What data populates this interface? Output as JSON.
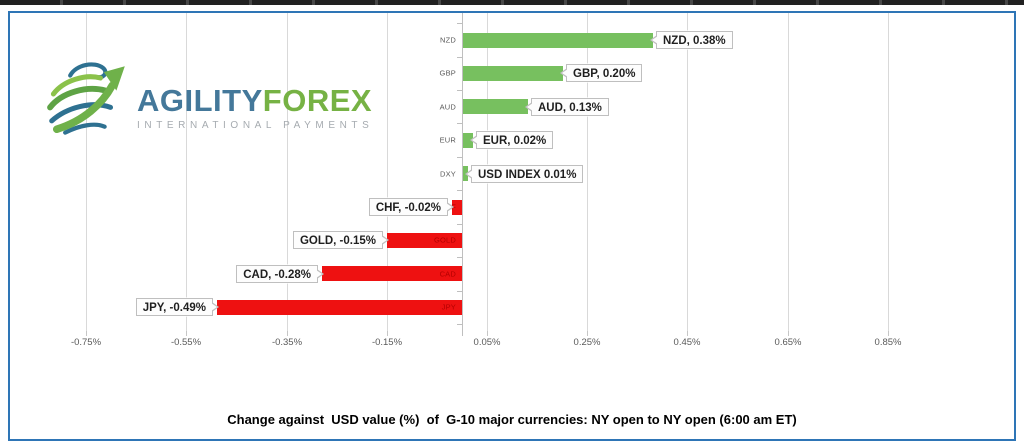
{
  "logo": {
    "brand_primary": "AGILITY",
    "brand_secondary": "FOREX",
    "tagline": "INTERNATIONAL PAYMENTS",
    "colors": {
      "primary": "#44789A",
      "secondary": "#76B244",
      "tagline": "#A6ABB0"
    }
  },
  "chart_data": {
    "type": "bar",
    "orientation": "horizontal",
    "title": "Change against  USD value (%)  of  G-10 major currencies: NY open to NY open (6:00 am ET)",
    "categories": [
      "NZD",
      "GBP",
      "AUD",
      "EUR",
      "DXY",
      "CHF",
      "GOLD",
      "CAD",
      "JPY"
    ],
    "values": [
      0.38,
      0.2,
      0.13,
      0.02,
      0.01,
      -0.02,
      -0.15,
      -0.28,
      -0.49
    ],
    "data_labels": [
      "NZD, 0.38%",
      "GBP, 0.20%",
      "AUD, 0.13%",
      "EUR, 0.02%",
      "USD INDEX 0.01%",
      "CHF, -0.02%",
      "GOLD, -0.15%",
      "CAD, -0.28%",
      "JPY, -0.49%"
    ],
    "x_ticks": [
      "-0.75%",
      "-0.55%",
      "-0.35%",
      "-0.15%",
      "0.05%",
      "0.25%",
      "0.45%",
      "0.65%",
      "0.85%"
    ],
    "x_tick_values": [
      -0.75,
      -0.55,
      -0.35,
      -0.15,
      0.05,
      0.25,
      0.45,
      0.65,
      0.85
    ],
    "xlim": [
      -0.9,
      1.1
    ],
    "grid": true,
    "legend": "none",
    "positive_color": "#77C05F",
    "negative_color": "#EE1111",
    "gridline_color": "#D9D9D9",
    "frame_border_color": "#2E75B6"
  }
}
